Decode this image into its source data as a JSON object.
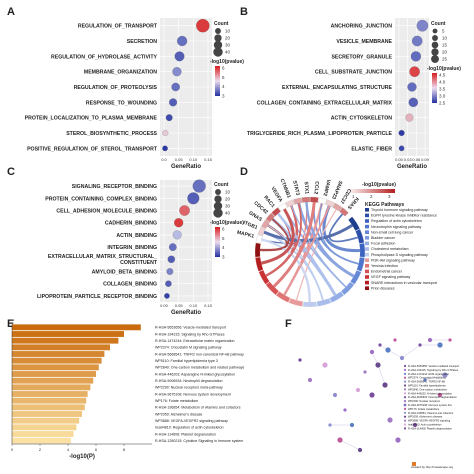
{
  "panels": {
    "a": "A",
    "b": "B",
    "c": "C",
    "d": "D",
    "e": "E",
    "f": "F"
  },
  "chart_data": [
    {
      "type": "scatter",
      "panel": "A",
      "categories": [
        "REGULATION_OF_TRANSPORT",
        "SECRETION",
        "REGULATION_OF_HYDROLASE_ACTIVITY",
        "MEMBRANE_ORGANIZATION",
        "REGULATION_OF_PROTEOLYSIS",
        "RESPONSE_TO_WOUNDING",
        "PROTEIN_LOCALIZATION_TO_PLASMA_MEMBRANE",
        "STEROL_BIOSYNTHETIC_PROCESS",
        "POSITIVE_REGULATION_OF_STEROL_TRANSPORT"
      ],
      "gene_ratio": [
        0.15,
        0.07,
        0.06,
        0.05,
        0.045,
        0.035,
        0.02,
        0.005,
        0.004
      ],
      "count": [
        40,
        20,
        18,
        15,
        12,
        10,
        6,
        4,
        3
      ],
      "neglog10p": [
        6.2,
        3.2,
        3.0,
        3.5,
        3.2,
        3.0,
        2.8,
        4.8,
        2.6
      ],
      "xlabel": "GeneRatio",
      "xticks": [
        "0.0",
        "0.05",
        "0.10",
        "0.15"
      ],
      "xlim": [
        0,
        0.17
      ],
      "legend_count_title": "Count",
      "legend_count": [
        "10",
        "20",
        "30",
        "40"
      ],
      "legend_color_title": "-log10(pvalue)",
      "legend_color_ticks": [
        "6",
        "5",
        "4",
        "3"
      ]
    },
    {
      "type": "scatter",
      "panel": "B",
      "categories": [
        "ANCHORING_JUNCTION",
        "VESICLE_MEMBRANE",
        "SECRETORY_GRANULE",
        "CELL_SUBSTRATE_JUNCTION",
        "EXTERNAL_ENCAPSULATING_STRUCTURE",
        "COLLAGEN_CONTAINING_EXTRACELLULAR_MATRIX",
        "ACTIN_CYTOSKELETON",
        "TRIGLYCERIDE_RICH_PLASMA_LIPOPROTEIN_PARTICLE",
        "ELASTIC_FIBER"
      ],
      "gene_ratio": [
        0.09,
        0.07,
        0.065,
        0.06,
        0.05,
        0.055,
        0.04,
        0.01,
        0.01
      ],
      "count": [
        28,
        22,
        20,
        22,
        15,
        16,
        10,
        4,
        3
      ],
      "neglog10p": [
        3.2,
        3.1,
        3.0,
        5.2,
        3.0,
        2.9,
        4.4,
        2.6,
        2.7
      ],
      "xlabel": "GeneRatio",
      "xticks": [
        "0.00",
        "0.03",
        "0.06",
        "0.09"
      ],
      "xlim": [
        0,
        0.1
      ],
      "legend_count_title": "Count",
      "legend_count": [
        "5",
        "10",
        "15",
        "20",
        "25"
      ],
      "legend_color_title": "-log10(pvalue)",
      "legend_color_ticks": [
        "4.5",
        "4.0",
        "3.5",
        "3.0",
        "2.5"
      ]
    },
    {
      "type": "scatter",
      "panel": "C",
      "categories": [
        "SIGNALING_RECEPTOR_BINDING",
        "PROTEIN_CONTAINING_COMPLEX_BINDING",
        "CELL_ADHESION_MOLECULE_BINDING",
        "CADHERIN_BINDING",
        "ACTIN_BINDING",
        "INTEGRIN_BINDING",
        "EXTRACELLULAR_MATRIX_STRUCTURAL_CONSTITUENT",
        "AMYLOID_BETA_BINDING",
        "COLLAGEN_BINDING",
        "LIPOPROTEIN_PARTICLE_RECEPTOR_BINDING"
      ],
      "gene_ratio": [
        0.12,
        0.1,
        0.07,
        0.05,
        0.045,
        0.03,
        0.025,
        0.02,
        0.015,
        0.01
      ],
      "count": [
        38,
        30,
        22,
        15,
        14,
        9,
        8,
        6,
        5,
        3
      ],
      "neglog10p": [
        3.2,
        3.0,
        5.8,
        6.2,
        4.0,
        3.2,
        3.0,
        3.4,
        3.0,
        2.7
      ],
      "xlabel": "GeneRatio",
      "xticks": [
        "0.00",
        "0.05",
        "0.10",
        "0.15"
      ],
      "xlim": [
        0,
        0.15
      ],
      "legend_count_title": "Count",
      "legend_count": [
        "10",
        "20",
        "30",
        "40"
      ],
      "legend_color_title": "-log10(pvalue)",
      "legend_color_ticks": [
        "6",
        "5",
        "4",
        "3"
      ]
    },
    {
      "type": "bar",
      "panel": "E",
      "categories": [
        "R-HSA-5653656: Vesicle-mediated transport",
        "R-HSA-194315: Signaling by Rho GTPases",
        "R-HSA-1474244: Extracellular matrix organization",
        "WP2374: Oncostatin M signaling pathway",
        "R-HSA-5668541: TNFR2 non-canonical NF-kB pathway",
        "WP5110: Familial hyperlipidemia type 3",
        "WP2840: One-carbon metabolism and related pathways",
        "R-HSA-446203: Asparagine N-linked glycosylation",
        "R-HSA-9006934: Neutrophil degranulation",
        "WP2290: Nuclear receptors meta-pathway",
        "R-HSA-9675108: Nervous system development",
        "WP176: Folate metabolism",
        "R-HSA-196854: Metabolism of vitamins and cofactors",
        "WP2059: Alzheimer's disease",
        "WP3888: VEGFA-VEGFR2 signaling pathway",
        "hsa04810: Regulation of actin cytoskeleton",
        "R-HSA-114608: Platelet degranulation",
        "R-HSA-1280215: Cytokine Signaling in Immune system"
      ],
      "values": [
        9.2,
        8.0,
        7.6,
        7.0,
        6.6,
        6.4,
        6.2,
        6.0,
        5.8,
        5.6,
        5.4,
        5.3,
        5.2,
        5.0,
        4.8,
        4.6,
        4.4,
        4.2
      ],
      "xlabel": "-log10(P)",
      "xticks": [
        "0",
        "2",
        "4",
        "6",
        "8"
      ],
      "xlim": [
        0,
        10
      ]
    }
  ],
  "chord": {
    "genes": [
      "MAPK1",
      "ITGB1",
      "GNAS",
      "CDC42",
      "RAC1",
      "VEGFA",
      "CTNNB1",
      "STAT3",
      "STX1",
      "CCL2",
      "VAMP2",
      "SNAP23",
      "CDC37",
      "KRAS"
    ],
    "legend_title": "-log10(pvalue)",
    "legend_ticks": [
      "1",
      "2",
      "3"
    ],
    "pathway_title": "KEGG Pathways",
    "pathways": [
      "Thyroid hormone signaling pathway",
      "EGFR tyrosine kinase inhibitor resistance",
      "Regulation of actin cytoskeleton",
      "Neurotrophin signaling pathway",
      "Non-small cell lung cancer",
      "Bladder cancer",
      "Focal adhesion",
      "Cholesterol metabolism",
      "Phospholipase D signaling pathway",
      "PI3K-Akt signaling pathway",
      "Yersinia infection",
      "Endometrial cancer",
      "VEGF signaling pathway",
      "SNARE interactions in vesicular transport",
      "Prion diseases"
    ],
    "pathway_colors": [
      "#1f3f8f",
      "#2b4fa8",
      "#3a62be",
      "#4f76cc",
      "#6688d6",
      "#7d9bdf",
      "#93ade6",
      "#a8bde9",
      "#bccbee",
      "#e89a9a",
      "#e07575",
      "#d65353",
      "#c93333",
      "#b51e1e",
      "#8f1010"
    ]
  },
  "network": {
    "legend": [
      "R-HSA-5653656: Vesicle-mediated transport",
      "R-HSA-194315: Signaling by Rho GTPases",
      "R-HSA-1474244: ECM organization",
      "WP2374: Oncostatin M signaling",
      "R-HSA-5668541: TNFR2 NF-kB",
      "WP5110: Familial hyperlipidemia",
      "WP2840: One-carbon metabolism",
      "R-HSA-446203: N-linked glycosylation",
      "R-HSA-9006934: Neutrophil degranulation",
      "WP2290: Nuclear receptors",
      "R-HSA-9675108: Nervous system dev",
      "WP176: Folate metabolism",
      "R-HSA-196854: Vitamins and cofactors",
      "WP2059: Alzheimer's disease",
      "WP3888: VEGFA-VEGFR2 signaling",
      "hsa04810: Actin cytoskeleton",
      "R-HSA-114608: Platelet degranulation"
    ],
    "footer": "created by http://metascape.org"
  },
  "colors": {
    "low": "#2230a0",
    "mid": "#e8e8f8",
    "high": "#d81c1c",
    "bar_top": "#c96a0c",
    "bar_bottom": "#fbe2a4",
    "bubble_grid": "#ebebeb",
    "panel_bg": "#ececec"
  }
}
